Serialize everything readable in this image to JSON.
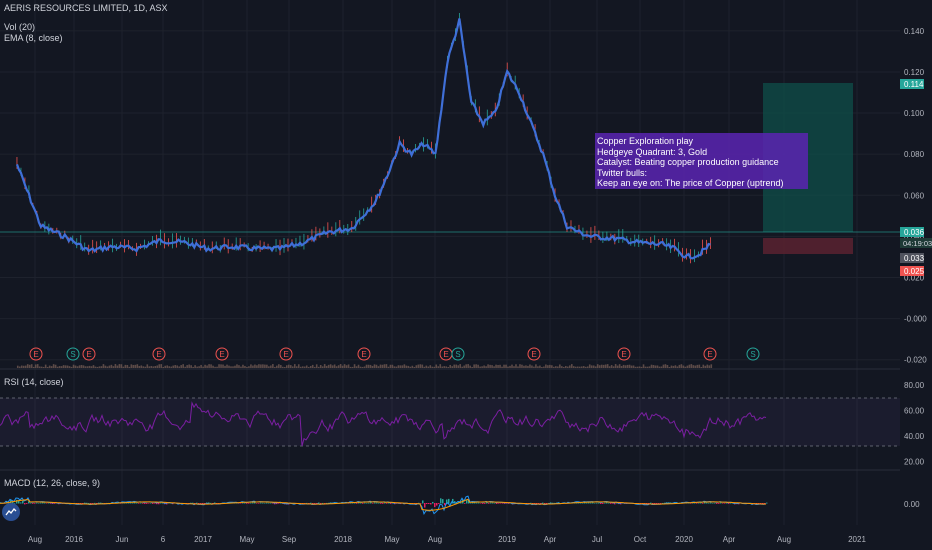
{
  "header": {
    "symbol_line": "AERIS RESOURCES LIMITED, 1D, ASX",
    "volume_line": "Vol (20)",
    "ema_line": "EMA (8, close)"
  },
  "rsi_panel": {
    "label": "RSI (14, close)"
  },
  "macd_panel": {
    "label": "MACD (12, 26, close, 9)"
  },
  "annotation": {
    "lines": [
      "Copper Exploration play",
      "Hedgeye Quadrant: 3, Gold",
      "Catalyst: Beating copper production guidance",
      "Twitter bulls:",
      "Keep an eye on: The price of Copper (uptrend)"
    ]
  },
  "price_badges": {
    "target": "0.114",
    "last": "0.036",
    "countdown": "04:19:03",
    "entry": "0.033",
    "stop": "0.025"
  },
  "colors": {
    "background": "#131722",
    "price_line": "#3f6fd8",
    "candle_up": "#26a69a",
    "candle_down": "#ef5350",
    "rsi_line": "#7b1fa2",
    "macd_line": "#2196f3",
    "signal_line": "#ff9800",
    "histogram_neg": "#e91e63",
    "annotation_bg": "#5b25b2",
    "target_zone": "#0f4f4a",
    "stop_zone": "#5a2230"
  },
  "chart_data": [
    {
      "type": "line",
      "title": "AERIS RESOURCES LIMITED, 1D, ASX",
      "series": [
        {
          "name": "EMA (8, close)"
        }
      ],
      "x": [
        "2015-08",
        "2015-10",
        "2015-12",
        "2016-02",
        "2016-04",
        "2016-06",
        "2016-08",
        "2016-10",
        "2016-12",
        "2017-02",
        "2017-04",
        "2017-06",
        "2017-08",
        "2017-10",
        "2017-12",
        "2018-02",
        "2018-03",
        "2018-04",
        "2018-05",
        "2018-06",
        "2018-07",
        "2018-08",
        "2018-09",
        "2018-10",
        "2018-11",
        "2018-12",
        "2019-01",
        "2019-02",
        "2019-03",
        "2019-04",
        "2019-05",
        "2019-06",
        "2019-07",
        "2019-08",
        "2019-10",
        "2019-12",
        "2020-02",
        "2020-03",
        "2020-04",
        "2020-05",
        "2020-06"
      ],
      "y": [
        0.075,
        0.045,
        0.04,
        0.033,
        0.035,
        0.034,
        0.038,
        0.037,
        0.034,
        0.035,
        0.034,
        0.034,
        0.037,
        0.042,
        0.044,
        0.057,
        0.07,
        0.085,
        0.08,
        0.085,
        0.08,
        0.125,
        0.145,
        0.105,
        0.095,
        0.1,
        0.12,
        0.11,
        0.095,
        0.08,
        0.06,
        0.045,
        0.042,
        0.04,
        0.039,
        0.037,
        0.036,
        0.034,
        0.03,
        0.031,
        0.036
      ],
      "x_tick_labels": [
        "Aug",
        "2016",
        "Jun",
        "6",
        "2017",
        "May",
        "Sep",
        "2018",
        "May",
        "Aug",
        "2019",
        "Apr",
        "Jul",
        "Oct",
        "2020",
        "Apr",
        "Aug",
        "2021"
      ],
      "y_tick_labels": [
        "0.140",
        "0.120",
        "0.100",
        "0.080",
        "0.060",
        "0.040",
        "0.020",
        "-0.000",
        "-0.020"
      ],
      "ylim": [
        -0.025,
        0.155
      ],
      "earnings_markers": [
        "E",
        "S",
        "E",
        "E",
        "E",
        "E",
        "E",
        "E",
        "S",
        "E",
        "E",
        "E",
        "S"
      ]
    },
    {
      "type": "line",
      "title": "RSI (14, close)",
      "y_tick_labels": [
        "80.00",
        "60.00",
        "40.00",
        "20.00"
      ],
      "ylim": [
        15,
        90
      ],
      "bands": [
        30,
        70
      ]
    },
    {
      "type": "line",
      "title": "MACD (12, 26, close, 9)",
      "y_tick_labels": [
        "0.00"
      ]
    }
  ]
}
